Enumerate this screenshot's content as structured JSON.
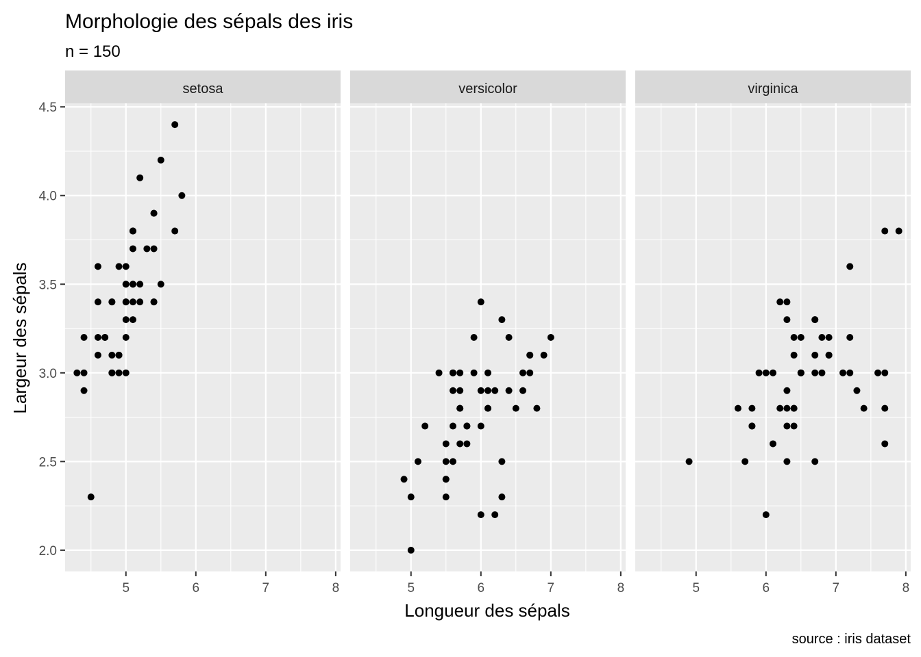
{
  "chart_data": {
    "type": "scatter",
    "title": "Morphologie des sépals des iris",
    "subtitle": "n = 150",
    "caption": "source : iris dataset",
    "xlabel": "Longueur des sépals",
    "ylabel": "Largeur des sépals",
    "xlim": [
      4.13,
      8.07
    ],
    "ylim": [
      1.88,
      4.52
    ],
    "x_ticks": [
      5,
      6,
      7,
      8
    ],
    "x_tick_labels": [
      "5",
      "6",
      "7",
      "8"
    ],
    "y_ticks": [
      2.0,
      2.5,
      3.0,
      3.5,
      4.0,
      4.5
    ],
    "y_tick_labels": [
      "2.0",
      "2.5",
      "3.0",
      "3.5",
      "4.0",
      "4.5"
    ],
    "grid": true,
    "point_color": "#000000",
    "panel_background": "#ebebeb",
    "strip_background": "#d9d9d9",
    "facets": [
      {
        "label": "setosa",
        "points": [
          [
            5.1,
            3.5
          ],
          [
            4.9,
            3.0
          ],
          [
            4.7,
            3.2
          ],
          [
            4.6,
            3.1
          ],
          [
            5.0,
            3.6
          ],
          [
            5.4,
            3.9
          ],
          [
            4.6,
            3.4
          ],
          [
            5.0,
            3.4
          ],
          [
            4.4,
            2.9
          ],
          [
            4.9,
            3.1
          ],
          [
            5.4,
            3.7
          ],
          [
            4.8,
            3.4
          ],
          [
            4.8,
            3.0
          ],
          [
            4.3,
            3.0
          ],
          [
            5.8,
            4.0
          ],
          [
            5.7,
            4.4
          ],
          [
            5.4,
            3.9
          ],
          [
            5.1,
            3.5
          ],
          [
            5.7,
            3.8
          ],
          [
            5.1,
            3.8
          ],
          [
            5.4,
            3.4
          ],
          [
            5.1,
            3.7
          ],
          [
            4.6,
            3.6
          ],
          [
            5.1,
            3.3
          ],
          [
            4.8,
            3.4
          ],
          [
            5.0,
            3.0
          ],
          [
            5.0,
            3.4
          ],
          [
            5.2,
            3.5
          ],
          [
            5.2,
            3.4
          ],
          [
            4.7,
            3.2
          ],
          [
            4.8,
            3.1
          ],
          [
            5.4,
            3.4
          ],
          [
            5.2,
            4.1
          ],
          [
            5.5,
            4.2
          ],
          [
            4.9,
            3.1
          ],
          [
            5.0,
            3.2
          ],
          [
            5.5,
            3.5
          ],
          [
            4.9,
            3.6
          ],
          [
            4.4,
            3.0
          ],
          [
            5.1,
            3.4
          ],
          [
            5.0,
            3.5
          ],
          [
            4.5,
            2.3
          ],
          [
            4.4,
            3.2
          ],
          [
            5.0,
            3.5
          ],
          [
            5.1,
            3.8
          ],
          [
            4.8,
            3.0
          ],
          [
            5.1,
            3.8
          ],
          [
            4.6,
            3.2
          ],
          [
            5.3,
            3.7
          ],
          [
            5.0,
            3.3
          ]
        ]
      },
      {
        "label": "versicolor",
        "points": [
          [
            7.0,
            3.2
          ],
          [
            6.4,
            3.2
          ],
          [
            6.9,
            3.1
          ],
          [
            5.5,
            2.3
          ],
          [
            6.5,
            2.8
          ],
          [
            5.7,
            2.8
          ],
          [
            6.3,
            3.3
          ],
          [
            4.9,
            2.4
          ],
          [
            6.6,
            2.9
          ],
          [
            5.2,
            2.7
          ],
          [
            5.0,
            2.0
          ],
          [
            5.9,
            3.0
          ],
          [
            6.0,
            2.2
          ],
          [
            6.1,
            2.9
          ],
          [
            5.6,
            2.9
          ],
          [
            6.7,
            3.1
          ],
          [
            5.6,
            3.0
          ],
          [
            5.8,
            2.7
          ],
          [
            6.2,
            2.2
          ],
          [
            5.6,
            2.5
          ],
          [
            5.9,
            3.2
          ],
          [
            6.1,
            2.8
          ],
          [
            6.3,
            2.5
          ],
          [
            6.1,
            2.8
          ],
          [
            6.4,
            2.9
          ],
          [
            6.6,
            3.0
          ],
          [
            6.8,
            2.8
          ],
          [
            6.7,
            3.0
          ],
          [
            6.0,
            2.9
          ],
          [
            5.7,
            2.6
          ],
          [
            5.5,
            2.4
          ],
          [
            5.5,
            2.4
          ],
          [
            5.8,
            2.7
          ],
          [
            6.0,
            2.7
          ],
          [
            5.4,
            3.0
          ],
          [
            6.0,
            3.4
          ],
          [
            6.7,
            3.1
          ],
          [
            6.3,
            2.3
          ],
          [
            5.6,
            3.0
          ],
          [
            5.5,
            2.5
          ],
          [
            5.5,
            2.6
          ],
          [
            6.1,
            3.0
          ],
          [
            5.8,
            2.6
          ],
          [
            5.0,
            2.3
          ],
          [
            5.6,
            2.7
          ],
          [
            5.7,
            3.0
          ],
          [
            5.7,
            2.9
          ],
          [
            6.2,
            2.9
          ],
          [
            5.1,
            2.5
          ],
          [
            5.7,
            2.8
          ]
        ]
      },
      {
        "label": "virginica",
        "points": [
          [
            6.3,
            3.3
          ],
          [
            5.8,
            2.7
          ],
          [
            7.1,
            3.0
          ],
          [
            6.3,
            2.9
          ],
          [
            6.5,
            3.0
          ],
          [
            7.6,
            3.0
          ],
          [
            4.9,
            2.5
          ],
          [
            7.3,
            2.9
          ],
          [
            6.7,
            2.5
          ],
          [
            7.2,
            3.6
          ],
          [
            6.5,
            3.2
          ],
          [
            6.4,
            2.7
          ],
          [
            6.8,
            3.0
          ],
          [
            5.7,
            2.5
          ],
          [
            5.8,
            2.8
          ],
          [
            6.4,
            3.2
          ],
          [
            6.5,
            3.0
          ],
          [
            7.7,
            3.8
          ],
          [
            7.7,
            2.6
          ],
          [
            6.0,
            2.2
          ],
          [
            6.9,
            3.2
          ],
          [
            5.6,
            2.8
          ],
          [
            7.7,
            2.8
          ],
          [
            6.3,
            2.7
          ],
          [
            6.7,
            3.3
          ],
          [
            7.2,
            3.2
          ],
          [
            6.2,
            2.8
          ],
          [
            6.1,
            3.0
          ],
          [
            6.4,
            2.8
          ],
          [
            7.2,
            3.0
          ],
          [
            7.4,
            2.8
          ],
          [
            7.9,
            3.8
          ],
          [
            6.4,
            2.8
          ],
          [
            6.3,
            2.8
          ],
          [
            6.1,
            2.6
          ],
          [
            7.7,
            3.0
          ],
          [
            6.3,
            3.4
          ],
          [
            6.4,
            3.1
          ],
          [
            6.0,
            3.0
          ],
          [
            6.9,
            3.1
          ],
          [
            6.7,
            3.1
          ],
          [
            6.9,
            3.1
          ],
          [
            5.8,
            2.7
          ],
          [
            6.8,
            3.2
          ],
          [
            6.7,
            3.3
          ],
          [
            6.7,
            3.0
          ],
          [
            6.3,
            2.5
          ],
          [
            6.5,
            3.0
          ],
          [
            6.2,
            3.4
          ],
          [
            5.9,
            3.0
          ]
        ]
      }
    ]
  }
}
